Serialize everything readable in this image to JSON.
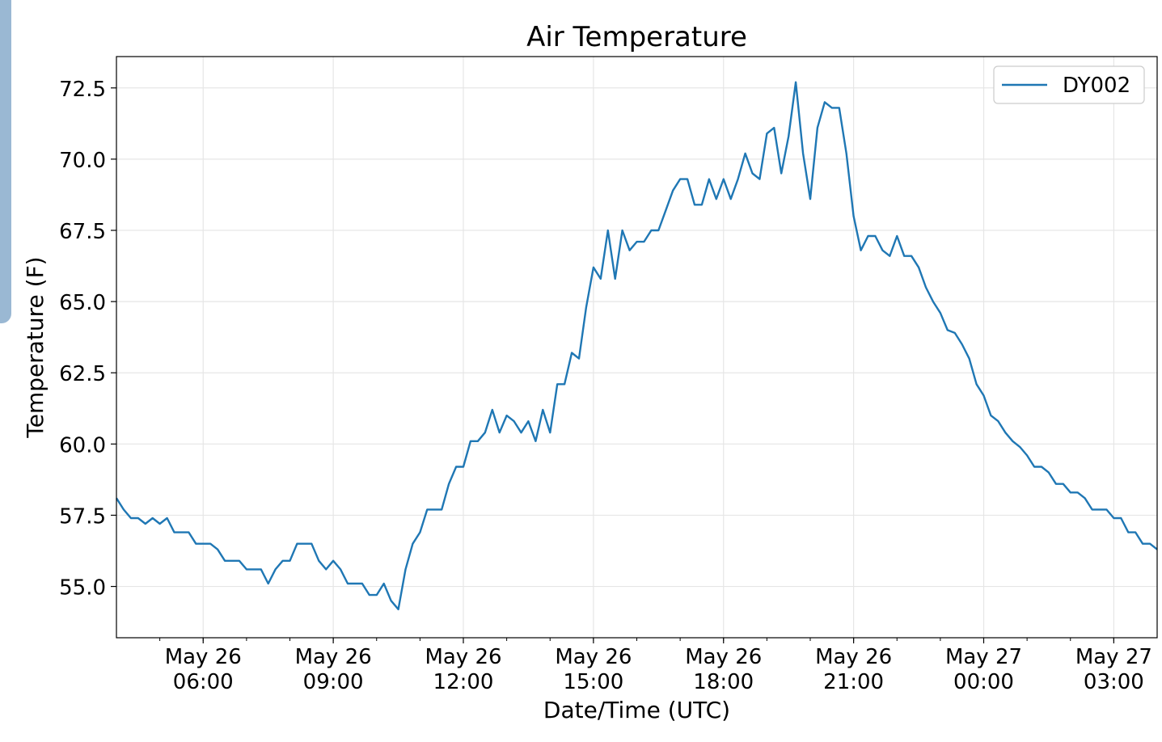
{
  "chart_data": {
    "type": "line",
    "title": "Air Temperature",
    "xlabel": "Date/Time (UTC)",
    "ylabel": "Temperature (F)",
    "ylim": [
      53.2,
      73.6
    ],
    "xlim": [
      "2024-05-26T04:00",
      "2024-05-27T04:00"
    ],
    "x_step_minutes": 10,
    "grid": true,
    "legend_position": "top-right",
    "yticks": [
      55.0,
      57.5,
      60.0,
      62.5,
      65.0,
      67.5,
      70.0,
      72.5
    ],
    "ytick_labels": [
      "55.0",
      "57.5",
      "60.0",
      "62.5",
      "65.0",
      "67.5",
      "70.0",
      "72.5"
    ],
    "xticks": [
      {
        "x": "2024-05-26T06:00",
        "line1": "May 26",
        "line2": "06:00"
      },
      {
        "x": "2024-05-26T09:00",
        "line1": "May 26",
        "line2": "09:00"
      },
      {
        "x": "2024-05-26T12:00",
        "line1": "May 26",
        "line2": "12:00"
      },
      {
        "x": "2024-05-26T15:00",
        "line1": "May 26",
        "line2": "15:00"
      },
      {
        "x": "2024-05-26T18:00",
        "line1": "May 26",
        "line2": "18:00"
      },
      {
        "x": "2024-05-26T21:00",
        "line1": "May 26",
        "line2": "21:00"
      },
      {
        "x": "2024-05-27T00:00",
        "line1": "May 27",
        "line2": "00:00"
      },
      {
        "x": "2024-05-27T03:00",
        "line1": "May 27",
        "line2": "03:00"
      }
    ],
    "series": [
      {
        "name": "DY002",
        "color": "#1f77b4",
        "start": "2024-05-26T04:00",
        "values": [
          58.1,
          57.7,
          57.4,
          57.4,
          57.2,
          57.4,
          57.2,
          57.4,
          56.9,
          56.9,
          56.9,
          56.5,
          56.5,
          56.5,
          56.3,
          55.9,
          55.9,
          55.9,
          55.6,
          55.6,
          55.6,
          55.1,
          55.6,
          55.9,
          55.9,
          56.5,
          56.5,
          56.5,
          55.9,
          55.6,
          55.9,
          55.6,
          55.1,
          55.1,
          55.1,
          54.7,
          54.7,
          55.1,
          54.5,
          54.2,
          55.6,
          56.5,
          56.9,
          57.7,
          57.7,
          57.7,
          58.6,
          59.2,
          59.2,
          60.1,
          60.1,
          60.4,
          61.2,
          60.4,
          61.0,
          60.8,
          60.4,
          60.8,
          60.1,
          61.2,
          60.4,
          62.1,
          62.1,
          63.2,
          63.0,
          64.8,
          66.2,
          65.8,
          67.5,
          65.8,
          67.5,
          66.8,
          67.1,
          67.1,
          67.5,
          67.5,
          68.2,
          68.9,
          69.3,
          69.3,
          68.4,
          68.4,
          69.3,
          68.6,
          69.3,
          68.6,
          69.3,
          70.2,
          69.5,
          69.3,
          70.9,
          71.1,
          69.5,
          70.8,
          72.7,
          70.2,
          68.6,
          71.1,
          72.0,
          71.8,
          71.8,
          70.2,
          68.0,
          66.8,
          67.3,
          67.3,
          66.8,
          66.6,
          67.3,
          66.6,
          66.6,
          66.2,
          65.5,
          65.0,
          64.6,
          64.0,
          63.9,
          63.5,
          63.0,
          62.1,
          61.7,
          61.0,
          60.8,
          60.4,
          60.1,
          59.9,
          59.6,
          59.2,
          59.2,
          59.0,
          58.6,
          58.6,
          58.3,
          58.3,
          58.1,
          57.7,
          57.7,
          57.7,
          57.4,
          57.4,
          56.9,
          56.9,
          56.5,
          56.5,
          56.3
        ]
      }
    ]
  }
}
